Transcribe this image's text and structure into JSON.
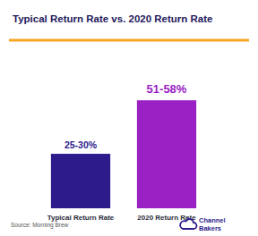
{
  "chart_data": {
    "type": "bar",
    "title": "Typical Return Rate vs. 2020 Return Rate",
    "categories": [
      "Typical Return Rate",
      "2020 Return Rate"
    ],
    "values": [
      27.5,
      54.5
    ],
    "value_labels": [
      "25-30%",
      "51-58%"
    ],
    "colors": [
      "#2d1b8c",
      "#9a22c4"
    ],
    "ylim": [
      0,
      60
    ],
    "tick_labels": "x",
    "data_labels": true,
    "source": "Source: Morning Brew",
    "brand": [
      "Channel",
      "Bakers"
    ]
  }
}
